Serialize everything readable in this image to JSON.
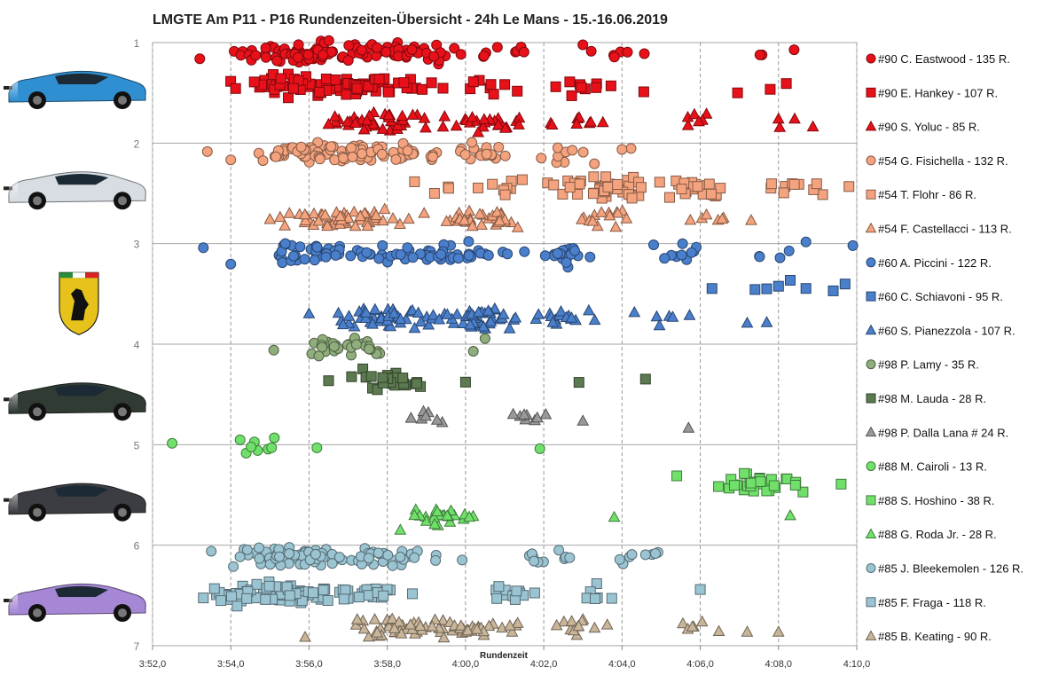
{
  "chart_data": {
    "type": "scatter",
    "title": "LMGTE Am P11 - P16 Rundenzeiten-Übersicht - 24h Le Mans - 15.-16.06.2019",
    "xlabel": "Rundenzeit",
    "ylabel": "",
    "xlim": [
      "3:52,0",
      "4:10,0"
    ],
    "ylim": [
      1,
      7
    ],
    "x_ticks": [
      "3:52,0",
      "3:54,0",
      "3:56,0",
      "3:58,0",
      "4:00,0",
      "4:02,0",
      "4:04,0",
      "4:06,0",
      "4:08,0",
      "4:10,0"
    ],
    "y_ticks": [
      "1",
      "2",
      "3",
      "4",
      "5",
      "6",
      "7"
    ],
    "grid": "both",
    "legend_position": "right",
    "series": [
      {
        "name": "#90 C. Eastwood - 135 R.",
        "color": "#e8111a",
        "marker": "circle",
        "y": 1.1,
        "count": 135,
        "clusters": [
          [
            235.5,
            50
          ],
          [
            237.5,
            45
          ],
          [
            239,
            15
          ],
          [
            241,
            8
          ],
          [
            244,
            6
          ],
          [
            248,
            2
          ]
        ],
        "outliers": [
          234.9,
          243,
          248.4
        ]
      },
      {
        "name": "#90 E. Hankey - 107 R.",
        "color": "#e8111a",
        "marker": "square",
        "y": 1.43,
        "count": 107,
        "clusters": [
          [
            236,
            55
          ],
          [
            238,
            30
          ],
          [
            240.5,
            8
          ],
          [
            242.5,
            6
          ],
          [
            244,
            4
          ],
          [
            247,
            2
          ]
        ],
        "outliers": [
          248.2
        ]
      },
      {
        "name": "#90 S. Yoluc - 85 R.",
        "color": "#e8111a",
        "marker": "triangle",
        "y": 1.78,
        "count": 85,
        "clusters": [
          [
            238,
            45
          ],
          [
            240.5,
            20
          ],
          [
            243,
            8
          ],
          [
            246,
            6
          ],
          [
            248,
            3
          ]
        ],
        "outliers": [
          236.5,
          248
        ]
      },
      {
        "name": "#54 G. Fisichella - 132 R.",
        "color": "#f4a37e",
        "marker": "circle",
        "y": 2.1,
        "count": 132,
        "clusters": [
          [
            236,
            60
          ],
          [
            238.2,
            35
          ],
          [
            240.5,
            15
          ],
          [
            242,
            6
          ],
          [
            243.5,
            4
          ]
        ],
        "outliers": [
          233.4,
          234,
          244
        ]
      },
      {
        "name": "#54 T. Flohr - 86 R.",
        "color": "#f4a37e",
        "marker": "square",
        "y": 2.45,
        "count": 86,
        "clusters": [
          [
            243.5,
            40
          ],
          [
            246,
            20
          ],
          [
            248.5,
            10
          ],
          [
            241,
            8
          ],
          [
            239.5,
            4
          ]
        ],
        "outliers": [
          249.8
        ]
      },
      {
        "name": "#54 F. Castellacci - 113 R.",
        "color": "#f4a37e",
        "marker": "triangle",
        "y": 2.75,
        "count": 113,
        "clusters": [
          [
            237,
            55
          ],
          [
            240.5,
            30
          ],
          [
            243.5,
            14
          ],
          [
            246,
            6
          ]
        ],
        "outliers": [
          247.3,
          235
        ]
      },
      {
        "name": "#60 A. Piccini - 122 R.",
        "color": "#4a7fcc",
        "marker": "circle",
        "y": 3.1,
        "count": 122,
        "clusters": [
          [
            236.5,
            45
          ],
          [
            239.5,
            40
          ],
          [
            242.5,
            20
          ],
          [
            245.5,
            10
          ],
          [
            248,
            4
          ]
        ],
        "outliers": [
          233.3,
          234,
          249.9,
          248.7
        ]
      },
      {
        "name": "#60 C. Schiavoni - 95 R.",
        "color": "#4a7fcc",
        "marker": "square",
        "y": 3.45,
        "count": 95,
        "clusters": [],
        "outliers": [
          246.3,
          247.4,
          247.7,
          248,
          248.3,
          248.7,
          249.4,
          249.7
        ]
      },
      {
        "name": "#60 S. Pianezzola - 107 R.",
        "color": "#4a7fcc",
        "marker": "triangle",
        "y": 3.75,
        "count": 107,
        "clusters": [
          [
            238,
            45
          ],
          [
            240.5,
            40
          ],
          [
            242.5,
            14
          ],
          [
            245,
            6
          ]
        ],
        "outliers": [
          236,
          247.2,
          247.7
        ]
      },
      {
        "name": "#98 P. Lamy - 35 R.",
        "color": "#8fae7c",
        "marker": "circle",
        "y": 4.03,
        "count": 35,
        "clusters": [
          [
            237,
            28
          ]
        ],
        "outliers": [
          235.1,
          240.2,
          240.5
        ]
      },
      {
        "name": "#98 M. Lauda - 28 R.",
        "color": "#5c7a50",
        "marker": "square",
        "y": 4.36,
        "count": 28,
        "clusters": [
          [
            238.2,
            24
          ]
        ],
        "outliers": [
          236.5,
          240,
          242.9,
          244.6
        ]
      },
      {
        "name": "#98 P. Dalla Lana # 24 R.",
        "color": "#999999",
        "marker": "triangle",
        "y": 4.72,
        "count": 24,
        "clusters": [
          [
            239,
            8
          ],
          [
            241.5,
            8
          ]
        ],
        "outliers": [
          243,
          245.7
        ]
      },
      {
        "name": "#88 M. Cairoli - 13 R.",
        "color": "#70e06b",
        "marker": "circle",
        "y": 5.0,
        "count": 13,
        "clusters": [
          [
            234.5,
            8
          ]
        ],
        "outliers": [
          232.5,
          236.2,
          241.9
        ]
      },
      {
        "name": "#88 S. Hoshino - 38 R.",
        "color": "#70e06b",
        "marker": "square",
        "y": 5.37,
        "count": 38,
        "clusters": [
          [
            247.5,
            30
          ]
        ],
        "outliers": [
          245.4,
          249.6
        ]
      },
      {
        "name": "#88 G. Roda Jr. - 28 R.",
        "color": "#70e06b",
        "marker": "triangle",
        "y": 5.72,
        "count": 28,
        "clusters": [
          [
            239.5,
            24
          ]
        ],
        "outliers": [
          248.3,
          243.8
        ]
      },
      {
        "name": "#85 J. Bleekemolen - 126 R.",
        "color": "#9bc4d2",
        "marker": "circle",
        "y": 6.12,
        "count": 126,
        "clusters": [
          [
            235.5,
            60
          ],
          [
            238,
            35
          ],
          [
            242,
            10
          ],
          [
            244.5,
            8
          ]
        ],
        "outliers": [
          233.5,
          244.6
        ]
      },
      {
        "name": "#85 F. Fraga - 118 R.",
        "color": "#9bc4d2",
        "marker": "square",
        "y": 6.48,
        "count": 118,
        "clusters": [
          [
            235,
            60
          ],
          [
            237.5,
            30
          ],
          [
            241,
            14
          ],
          [
            243.5,
            6
          ]
        ],
        "outliers": [
          233.3,
          246
        ]
      },
      {
        "name": "#85 B. Keating - 90 R.",
        "color": "#c9b59a",
        "marker": "triangle",
        "y": 6.82,
        "count": 90,
        "clusters": [
          [
            238.5,
            45
          ],
          [
            240.5,
            25
          ],
          [
            243,
            12
          ],
          [
            246,
            6
          ]
        ],
        "outliers": [
          235.9,
          247.2,
          248
        ]
      }
    ]
  },
  "cars": [
    {
      "name": "aston-martin-90-blue",
      "color": "#2f8fd0",
      "row": 1.45
    },
    {
      "name": "ferrari-54-white",
      "color": "#d8dde3",
      "row": 2.45
    },
    {
      "name": "ferrari-logo",
      "color": "#e7c21a",
      "row": 3.5
    },
    {
      "name": "aston-martin-98-dark",
      "color": "#2f3b33",
      "row": 4.55
    },
    {
      "name": "porsche-88-dark",
      "color": "#3b3d42",
      "row": 5.55
    },
    {
      "name": "porsche-85-purple",
      "color": "#a687d6",
      "row": 6.55
    }
  ]
}
